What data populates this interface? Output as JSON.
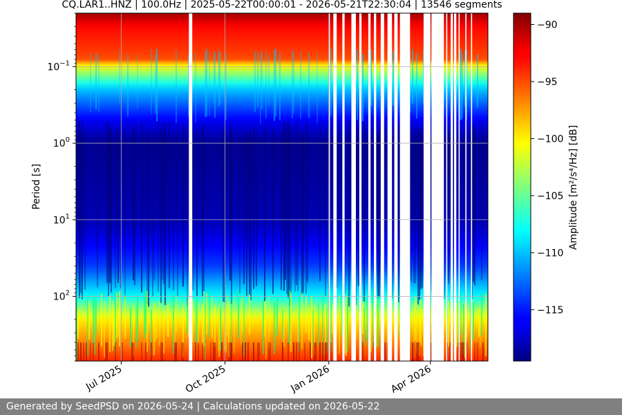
{
  "chart_data": {
    "type": "heatmap",
    "title": "CQ.LAR1..HNZ | 100.0Hz | 2025-05-22T00:00:01 - 2026-05-21T22:30:04 | 13546 segments",
    "xlabel": "",
    "ylabel": "Period [s]",
    "x_range": [
      "2025-05-22",
      "2026-05-21"
    ],
    "x_ticks": [
      {
        "date": "2025-07-01",
        "label": "Jul 2025"
      },
      {
        "date": "2025-10-01",
        "label": "Oct 2025"
      },
      {
        "date": "2026-01-01",
        "label": "Jan 2026"
      },
      {
        "date": "2026-04-01",
        "label": "Apr 2026"
      }
    ],
    "y_scale": "log",
    "y_range": [
      0.02,
      700
    ],
    "y_ticks": [
      {
        "value": 0.1,
        "base": "10",
        "exp": "−1"
      },
      {
        "value": 1,
        "base": "10",
        "exp": "0"
      },
      {
        "value": 10,
        "base": "10",
        "exp": "1"
      },
      {
        "value": 100,
        "base": "10",
        "exp": "2"
      }
    ],
    "grid": true,
    "colorbar": {
      "label": "Amplitude [m²/s⁴/Hz] [dB]",
      "colormap": "jet",
      "range": [
        -119.5,
        -89
      ],
      "ticks": [
        -90,
        -95,
        -100,
        -105,
        -110,
        -115
      ],
      "tick_labels": [
        "−90",
        "−95",
        "−100",
        "−105",
        "−110",
        "−115"
      ]
    },
    "period_profile_db": [
      {
        "period": 0.02,
        "db": -90
      },
      {
        "period": 0.03,
        "db": -93
      },
      {
        "period": 0.08,
        "db": -95
      },
      {
        "period": 0.1,
        "db": -101
      },
      {
        "period": 0.2,
        "db": -110
      },
      {
        "period": 0.5,
        "db": -116
      },
      {
        "period": 1,
        "db": -119
      },
      {
        "period": 10,
        "db": -118
      },
      {
        "period": 40,
        "db": -114
      },
      {
        "period": 100,
        "db": -108
      },
      {
        "period": 200,
        "db": -100
      },
      {
        "period": 700,
        "db": -94
      }
    ],
    "data_gaps": [
      {
        "start": "2025-08-30",
        "end": "2025-09-02"
      },
      {
        "start": "2026-01-01",
        "end": "2026-01-02"
      },
      {
        "start": "2026-01-05",
        "end": "2026-01-08"
      },
      {
        "start": "2026-01-13",
        "end": "2026-01-15"
      },
      {
        "start": "2026-01-21",
        "end": "2026-01-25"
      },
      {
        "start": "2026-01-28",
        "end": "2026-01-30"
      },
      {
        "start": "2026-02-05",
        "end": "2026-02-07"
      },
      {
        "start": "2026-02-10",
        "end": "2026-02-12"
      },
      {
        "start": "2026-02-16",
        "end": "2026-02-19"
      },
      {
        "start": "2026-02-22",
        "end": "2026-02-26"
      },
      {
        "start": "2026-02-28",
        "end": "2026-03-03"
      },
      {
        "start": "2026-03-05",
        "end": "2026-03-14"
      },
      {
        "start": "2026-03-26",
        "end": "2026-04-01"
      },
      {
        "start": "2026-04-02",
        "end": "2026-04-13"
      },
      {
        "start": "2026-04-15",
        "end": "2026-04-16"
      },
      {
        "start": "2026-04-19",
        "end": "2026-04-21"
      },
      {
        "start": "2026-04-22",
        "end": "2026-04-24"
      },
      {
        "start": "2026-04-26",
        "end": "2026-04-27"
      },
      {
        "start": "2026-05-02",
        "end": "2026-05-03"
      },
      {
        "start": "2026-05-07",
        "end": "2026-05-08"
      }
    ]
  },
  "footer": {
    "text": "Generated by SeedPSD on 2026-05-24 | Calculations updated on 2026-05-22"
  }
}
